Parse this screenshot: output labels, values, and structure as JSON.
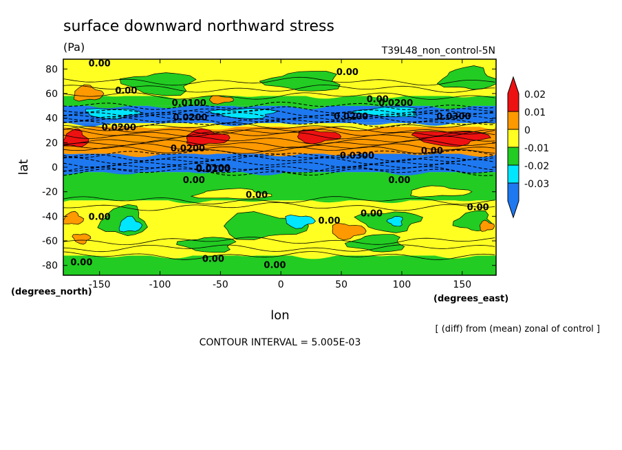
{
  "title": "surface downward northward stress",
  "units": "(Pa)",
  "dataset": "T39L48_non_control-5N",
  "footer_diff": "[ (diff) from (mean) zonal of control ]",
  "contour_interval": "CONTOUR INTERVAL = 5.005E-03",
  "chart_data": {
    "type": "heatmap",
    "title": "surface downward northward stress",
    "xlabel": "lon",
    "ylabel": "lat",
    "xunit": "(degrees_east)",
    "yunit": "(degrees_north)",
    "xlim": [
      -180,
      178
    ],
    "ylim": [
      -88,
      88
    ],
    "xticks": [
      -150,
      -100,
      -50,
      0,
      50,
      100,
      150
    ],
    "yticks": [
      -80,
      -60,
      -40,
      -20,
      0,
      20,
      40,
      60,
      80
    ],
    "colorbar": {
      "levels": [
        -0.03,
        -0.02,
        -0.01,
        0,
        0.01,
        0.02
      ],
      "labels": [
        "-0.03",
        "-0.02",
        "-0.01",
        "0",
        "0.01",
        "0.02"
      ],
      "colors": [
        "#1e78f0",
        "#00e6ff",
        "#22cc22",
        "#ffff22",
        "#ff9900",
        "#ee1111"
      ]
    },
    "colors": {
      "red": "#ee1111",
      "orange": "#ff9900",
      "yellow": "#ffff22",
      "green": "#22cc22",
      "cyan": "#00e6ff",
      "blue": "#1e78f0"
    },
    "bands": [
      {
        "lat_top": 88,
        "lat_bottom": 58,
        "level": "yellow"
      },
      {
        "lat_top": 58,
        "lat_bottom": 50,
        "level": "green"
      },
      {
        "lat_top": 50,
        "lat_bottom": 36,
        "level": "blue"
      },
      {
        "lat_top": 36,
        "lat_bottom": 33,
        "level": "yellow"
      },
      {
        "lat_top": 33,
        "lat_bottom": 11,
        "level": "orange"
      },
      {
        "lat_top": 11,
        "lat_bottom": -4,
        "level": "blue"
      },
      {
        "lat_top": -4,
        "lat_bottom": -27,
        "level": "green"
      },
      {
        "lat_top": -27,
        "lat_bottom": -72,
        "level": "yellow"
      },
      {
        "lat_top": -72,
        "lat_bottom": -88,
        "level": "green"
      }
    ],
    "patches": [
      {
        "lon": -170,
        "lat": 23,
        "rlon": 10,
        "rlat": 7,
        "level": "red"
      },
      {
        "lon": -62,
        "lat": 24,
        "rlon": 18,
        "rlat": 6,
        "level": "red"
      },
      {
        "lon": 30,
        "lat": 25,
        "rlon": 18,
        "rlat": 5,
        "level": "red"
      },
      {
        "lon": 140,
        "lat": 24,
        "rlon": 30,
        "rlat": 6,
        "level": "red"
      },
      {
        "lon": -100,
        "lat": 68,
        "rlon": 28,
        "rlat": 9,
        "level": "green"
      },
      {
        "lon": 20,
        "lat": 70,
        "rlon": 30,
        "rlat": 8,
        "level": "green"
      },
      {
        "lon": 155,
        "lat": 72,
        "rlon": 22,
        "rlat": 9,
        "level": "green"
      },
      {
        "lon": -160,
        "lat": 60,
        "rlon": 12,
        "rlat": 6,
        "level": "orange"
      },
      {
        "lon": -50,
        "lat": 55,
        "rlon": 10,
        "rlat": 3,
        "level": "orange"
      },
      {
        "lon": -140,
        "lat": 44,
        "rlon": 22,
        "rlat": 4,
        "level": "cyan"
      },
      {
        "lon": -30,
        "lat": 44,
        "rlon": 25,
        "rlat": 4,
        "level": "cyan"
      },
      {
        "lon": 90,
        "lat": 45,
        "rlon": 25,
        "rlat": 4,
        "level": "cyan"
      },
      {
        "lon": -130,
        "lat": -44,
        "rlon": 18,
        "rlat": 12,
        "level": "green"
      },
      {
        "lon": -125,
        "lat": -47,
        "rlon": 9,
        "rlat": 6,
        "level": "cyan"
      },
      {
        "lon": -15,
        "lat": -48,
        "rlon": 35,
        "rlat": 10,
        "level": "green"
      },
      {
        "lon": 15,
        "lat": -44,
        "rlon": 12,
        "rlat": 5,
        "level": "cyan"
      },
      {
        "lon": 90,
        "lat": -44,
        "rlon": 25,
        "rlat": 8,
        "level": "green"
      },
      {
        "lon": 95,
        "lat": -44,
        "rlon": 6,
        "rlat": 4,
        "level": "cyan"
      },
      {
        "lon": 160,
        "lat": -44,
        "rlon": 15,
        "rlat": 8,
        "level": "green"
      },
      {
        "lon": -172,
        "lat": -42,
        "rlon": 8,
        "rlat": 5,
        "level": "orange"
      },
      {
        "lon": 170,
        "lat": -48,
        "rlon": 6,
        "rlat": 4,
        "level": "orange"
      },
      {
        "lon": 55,
        "lat": -52,
        "rlon": 14,
        "rlat": 6,
        "level": "orange"
      },
      {
        "lon": -165,
        "lat": -58,
        "rlon": 7,
        "rlat": 4,
        "level": "orange"
      },
      {
        "lon": -60,
        "lat": -63,
        "rlon": 22,
        "rlat": 6,
        "level": "green"
      },
      {
        "lon": 80,
        "lat": -62,
        "rlon": 22,
        "rlat": 7,
        "level": "green"
      },
      {
        "lon": -40,
        "lat": -22,
        "rlon": 30,
        "rlat": 4,
        "level": "yellow"
      },
      {
        "lon": 130,
        "lat": -20,
        "rlon": 25,
        "rlat": 4,
        "level": "yellow"
      }
    ],
    "contour_labels": [
      {
        "lon": -150,
        "lat": 82,
        "text": "0.00"
      },
      {
        "lon": 55,
        "lat": 75,
        "text": "0.00"
      },
      {
        "lon": -128,
        "lat": 60,
        "text": "0.00"
      },
      {
        "lon": -76,
        "lat": 50,
        "text": "0.0100"
      },
      {
        "lon": 80,
        "lat": 53,
        "text": "0.00"
      },
      {
        "lon": 95,
        "lat": 50,
        "text": "0.0200"
      },
      {
        "lon": -75,
        "lat": 38,
        "text": "0.0200"
      },
      {
        "lon": 58,
        "lat": 39,
        "text": "0.0200"
      },
      {
        "lon": 143,
        "lat": 39,
        "text": "0.0300"
      },
      {
        "lon": -134,
        "lat": 30,
        "text": "0.0200"
      },
      {
        "lon": -77,
        "lat": 13,
        "text": "0.0200"
      },
      {
        "lon": 125,
        "lat": 11,
        "text": "0.00"
      },
      {
        "lon": 63,
        "lat": 7,
        "text": "0.0300"
      },
      {
        "lon": -56,
        "lat": -3,
        "text": "0.0100"
      },
      {
        "lon": -56,
        "lat": -4,
        "text": "0.0200"
      },
      {
        "lon": -72,
        "lat": -13,
        "text": "0.00"
      },
      {
        "lon": 98,
        "lat": -13,
        "text": "0.00"
      },
      {
        "lon": -20,
        "lat": -25,
        "text": "0.00"
      },
      {
        "lon": 163,
        "lat": -35,
        "text": "0.00"
      },
      {
        "lon": -150,
        "lat": -43,
        "text": "0.00"
      },
      {
        "lon": 40,
        "lat": -46,
        "text": "0.00"
      },
      {
        "lon": 75,
        "lat": -40,
        "text": "0.00"
      },
      {
        "lon": -56,
        "lat": -77,
        "text": "0.00"
      },
      {
        "lon": -165,
        "lat": -80,
        "text": "0.00"
      },
      {
        "lon": -5,
        "lat": -82,
        "text": "0.00"
      }
    ]
  }
}
